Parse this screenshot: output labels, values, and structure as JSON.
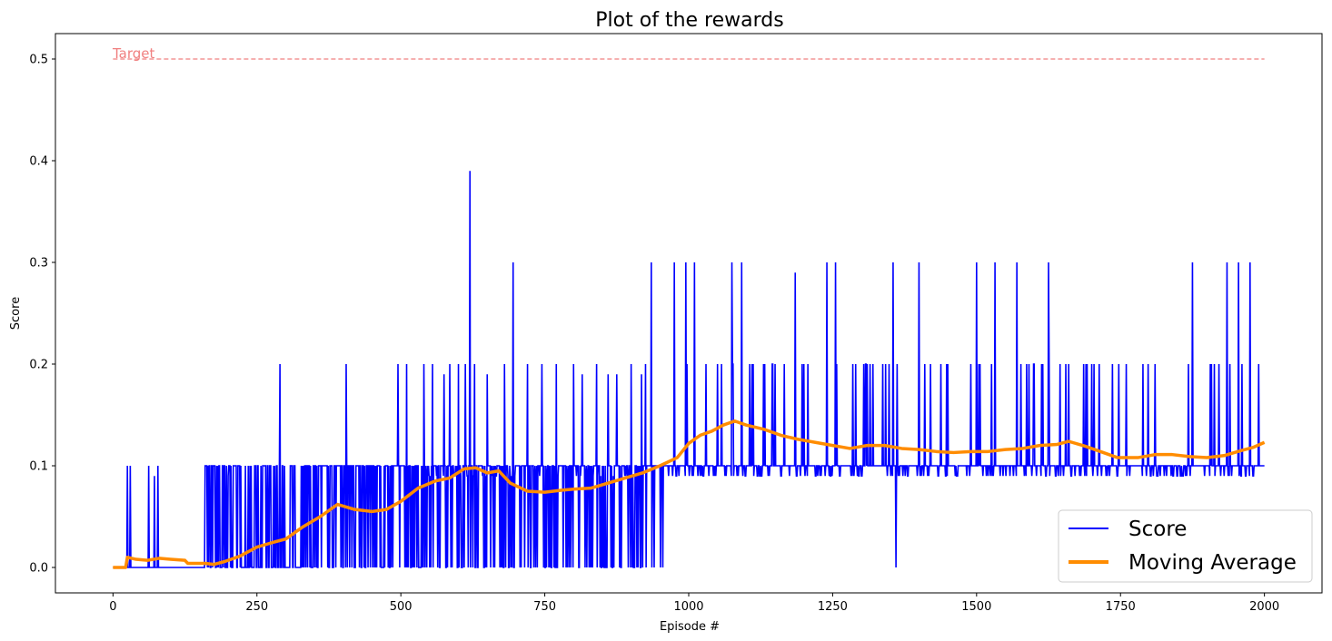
{
  "chart_data": {
    "type": "line",
    "title": "Plot of the rewards",
    "xlabel": "Episode #",
    "ylabel": "Score",
    "xlim": [
      -100,
      2100
    ],
    "ylim": [
      -0.025,
      0.525
    ],
    "xticks": [
      0,
      250,
      500,
      750,
      1000,
      1250,
      1500,
      1750,
      2000
    ],
    "yticks": [
      0.0,
      0.1,
      0.2,
      0.3,
      0.4,
      0.5
    ],
    "grid": false,
    "legend_position": "lower-right",
    "target": {
      "label": "Target",
      "value": 0.5,
      "x_range": [
        0,
        2000
      ],
      "color": "#f08080"
    },
    "series": [
      {
        "name": "Score",
        "color": "#0000ff",
        "note_spikes": [
          [
            25,
            0.1
          ],
          [
            30,
            0.1
          ],
          [
            62,
            0.1
          ],
          [
            72,
            0.09
          ],
          [
            78,
            0.1
          ],
          [
            165,
            0.1
          ],
          [
            175,
            0.1
          ],
          [
            185,
            0.1
          ],
          [
            200,
            0.09
          ],
          [
            210,
            0.1
          ],
          [
            220,
            0.1
          ],
          [
            240,
            0.1
          ],
          [
            260,
            0.1
          ],
          [
            290,
            0.2
          ],
          [
            310,
            0.1
          ],
          [
            340,
            0.1
          ],
          [
            370,
            0.1
          ],
          [
            405,
            0.2
          ],
          [
            440,
            0.1
          ],
          [
            495,
            0.2
          ],
          [
            510,
            0.2
          ],
          [
            540,
            0.2
          ],
          [
            555,
            0.2
          ],
          [
            575,
            0.19
          ],
          [
            585,
            0.2
          ],
          [
            600,
            0.2
          ],
          [
            612,
            0.2
          ],
          [
            620,
            0.39
          ],
          [
            628,
            0.2
          ],
          [
            650,
            0.19
          ],
          [
            680,
            0.2
          ],
          [
            695,
            0.3
          ],
          [
            720,
            0.2
          ],
          [
            745,
            0.2
          ],
          [
            770,
            0.2
          ],
          [
            800,
            0.2
          ],
          [
            815,
            0.19
          ],
          [
            840,
            0.2
          ],
          [
            860,
            0.19
          ],
          [
            875,
            0.19
          ],
          [
            900,
            0.2
          ],
          [
            918,
            0.19
          ],
          [
            925,
            0.2
          ],
          [
            935,
            0.3
          ],
          [
            975,
            0.3
          ],
          [
            995,
            0.3
          ],
          [
            1010,
            0.3
          ],
          [
            1030,
            0.2
          ],
          [
            1050,
            0.2
          ],
          [
            1075,
            0.3
          ],
          [
            1092,
            0.3
          ],
          [
            1110,
            0.2
          ],
          [
            1130,
            0.2
          ],
          [
            1150,
            0.2
          ],
          [
            1185,
            0.29
          ],
          [
            1200,
            0.2
          ],
          [
            1240,
            0.3
          ],
          [
            1255,
            0.3
          ],
          [
            1290,
            0.2
          ],
          [
            1320,
            0.2
          ],
          [
            1355,
            0.3
          ],
          [
            1400,
            0.3
          ],
          [
            1450,
            0.2
          ],
          [
            1500,
            0.3
          ],
          [
            1532,
            0.3
          ],
          [
            1570,
            0.3
          ],
          [
            1600,
            0.2
          ],
          [
            1625,
            0.3
          ],
          [
            1660,
            0.2
          ],
          [
            1700,
            0.2
          ],
          [
            1760,
            0.2
          ],
          [
            1810,
            0.2
          ],
          [
            1875,
            0.3
          ],
          [
            1935,
            0.3
          ],
          [
            1955,
            0.3
          ],
          [
            1975,
            0.3
          ],
          [
            1990,
            0.2
          ]
        ]
      },
      {
        "name": "Moving Average",
        "color": "#ff8c00",
        "points": [
          [
            0,
            0.0
          ],
          [
            22,
            0.0
          ],
          [
            25,
            0.01
          ],
          [
            40,
            0.008
          ],
          [
            60,
            0.007
          ],
          [
            80,
            0.009
          ],
          [
            100,
            0.008
          ],
          [
            125,
            0.007
          ],
          [
            130,
            0.004
          ],
          [
            160,
            0.004
          ],
          [
            175,
            0.003
          ],
          [
            195,
            0.006
          ],
          [
            220,
            0.011
          ],
          [
            250,
            0.02
          ],
          [
            280,
            0.025
          ],
          [
            300,
            0.028
          ],
          [
            330,
            0.04
          ],
          [
            360,
            0.05
          ],
          [
            390,
            0.062
          ],
          [
            420,
            0.057
          ],
          [
            450,
            0.055
          ],
          [
            475,
            0.057
          ],
          [
            500,
            0.065
          ],
          [
            530,
            0.078
          ],
          [
            560,
            0.085
          ],
          [
            585,
            0.088
          ],
          [
            610,
            0.097
          ],
          [
            630,
            0.098
          ],
          [
            650,
            0.093
          ],
          [
            670,
            0.095
          ],
          [
            690,
            0.083
          ],
          [
            720,
            0.075
          ],
          [
            750,
            0.074
          ],
          [
            780,
            0.076
          ],
          [
            800,
            0.077
          ],
          [
            830,
            0.078
          ],
          [
            860,
            0.083
          ],
          [
            890,
            0.088
          ],
          [
            920,
            0.093
          ],
          [
            950,
            0.1
          ],
          [
            980,
            0.108
          ],
          [
            1000,
            0.122
          ],
          [
            1020,
            0.13
          ],
          [
            1040,
            0.134
          ],
          [
            1060,
            0.14
          ],
          [
            1080,
            0.144
          ],
          [
            1100,
            0.14
          ],
          [
            1130,
            0.136
          ],
          [
            1160,
            0.13
          ],
          [
            1190,
            0.126
          ],
          [
            1220,
            0.123
          ],
          [
            1250,
            0.12
          ],
          [
            1280,
            0.117
          ],
          [
            1310,
            0.12
          ],
          [
            1340,
            0.12
          ],
          [
            1370,
            0.117
          ],
          [
            1400,
            0.116
          ],
          [
            1430,
            0.114
          ],
          [
            1460,
            0.113
          ],
          [
            1490,
            0.114
          ],
          [
            1520,
            0.114
          ],
          [
            1550,
            0.116
          ],
          [
            1580,
            0.117
          ],
          [
            1610,
            0.12
          ],
          [
            1640,
            0.121
          ],
          [
            1660,
            0.124
          ],
          [
            1690,
            0.119
          ],
          [
            1720,
            0.113
          ],
          [
            1745,
            0.108
          ],
          [
            1780,
            0.108
          ],
          [
            1810,
            0.111
          ],
          [
            1840,
            0.111
          ],
          [
            1870,
            0.109
          ],
          [
            1900,
            0.108
          ],
          [
            1930,
            0.11
          ],
          [
            1960,
            0.115
          ],
          [
            1980,
            0.118
          ],
          [
            2000,
            0.123
          ]
        ]
      }
    ]
  }
}
